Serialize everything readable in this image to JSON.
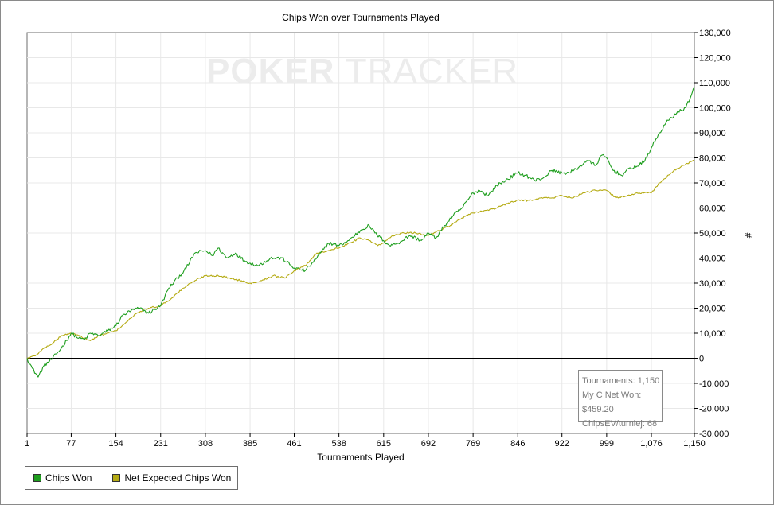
{
  "chart_data": {
    "type": "line",
    "title": "Chips Won over Tournaments Played",
    "xlabel": "Tournaments Played",
    "ylabel": "#",
    "watermark": {
      "left": "POKER",
      "right": "TRACKER"
    },
    "xlim": [
      1,
      1150
    ],
    "ylim": [
      -30000,
      130000
    ],
    "xticks": [
      1,
      77,
      154,
      231,
      308,
      385,
      461,
      538,
      615,
      692,
      769,
      846,
      922,
      999,
      1076,
      1150
    ],
    "xtick_labels": [
      "1",
      "77",
      "154",
      "231",
      "308",
      "385",
      "461",
      "538",
      "615",
      "692",
      "769",
      "846",
      "922",
      "999",
      "1,076",
      "1,150"
    ],
    "yticks": [
      -30000,
      -20000,
      -10000,
      0,
      10000,
      20000,
      30000,
      40000,
      50000,
      60000,
      70000,
      80000,
      90000,
      100000,
      110000,
      120000,
      130000
    ],
    "ytick_labels": [
      "-30,000",
      "-20,000",
      "-10,000",
      "0",
      "10,000",
      "20,000",
      "30,000",
      "40,000",
      "50,000",
      "60,000",
      "70,000",
      "80,000",
      "90,000",
      "100,000",
      "110,000",
      "120,000",
      "130,000"
    ],
    "grid": true,
    "y_axis_side": "right",
    "legend_position": "bottom-left",
    "series": [
      {
        "name": "Chips Won",
        "color": "#1e9e1e",
        "x": [
          1,
          10,
          20,
          30,
          45,
          60,
          77,
          90,
          100,
          110,
          125,
          140,
          154,
          165,
          180,
          195,
          210,
          231,
          245,
          260,
          275,
          290,
          308,
          320,
          330,
          345,
          360,
          375,
          385,
          400,
          420,
          440,
          461,
          480,
          500,
          520,
          538,
          555,
          575,
          590,
          600,
          615,
          625,
          640,
          660,
          680,
          692,
          705,
          720,
          735,
          750,
          769,
          780,
          795,
          810,
          825,
          846,
          860,
          875,
          890,
          905,
          922,
          935,
          950,
          965,
          980,
          990,
          999,
          1010,
          1025,
          1040,
          1055,
          1065,
          1076,
          1090,
          1105,
          1120,
          1135,
          1150
        ],
        "y": [
          0,
          -4000,
          -7500,
          -3000,
          0,
          4000,
          10000,
          8000,
          7500,
          10000,
          9000,
          11000,
          13000,
          17000,
          19000,
          20000,
          18000,
          21000,
          28000,
          32000,
          36000,
          42000,
          43000,
          41000,
          44000,
          40000,
          42000,
          39000,
          38000,
          37000,
          40000,
          40000,
          36000,
          35000,
          40000,
          46000,
          45000,
          47000,
          51000,
          53000,
          50000,
          47000,
          45000,
          46000,
          49000,
          47000,
          50000,
          48000,
          53000,
          57000,
          60000,
          66000,
          67000,
          65000,
          69000,
          71000,
          74000,
          73000,
          71000,
          72000,
          75000,
          74000,
          74000,
          76000,
          79000,
          77000,
          81000,
          80000,
          75000,
          73000,
          76000,
          77000,
          79000,
          84000,
          90000,
          95000,
          98000,
          100000,
          108000
        ]
      },
      {
        "name": "Net Expected Chips Won",
        "color": "#b5ab14",
        "x": [
          1,
          15,
          30,
          45,
          60,
          77,
          90,
          110,
          125,
          140,
          154,
          170,
          190,
          210,
          231,
          250,
          270,
          290,
          308,
          330,
          350,
          370,
          385,
          405,
          425,
          445,
          461,
          480,
          500,
          520,
          538,
          555,
          575,
          590,
          605,
          615,
          630,
          650,
          670,
          692,
          710,
          730,
          750,
          769,
          790,
          810,
          830,
          846,
          865,
          885,
          905,
          922,
          940,
          960,
          980,
          999,
          1015,
          1035,
          1055,
          1076,
          1090,
          1110,
          1130,
          1150
        ],
        "y": [
          0,
          1000,
          4000,
          6000,
          9000,
          10000,
          9000,
          7000,
          9000,
          10000,
          11000,
          14000,
          18000,
          20000,
          21000,
          24000,
          28000,
          31000,
          33000,
          33000,
          32000,
          31000,
          30000,
          31000,
          33000,
          32000,
          35000,
          37000,
          42000,
          43000,
          44000,
          46000,
          48000,
          47000,
          45000,
          46000,
          49000,
          50000,
          50000,
          49000,
          51000,
          53000,
          56000,
          58000,
          59000,
          60000,
          62000,
          63000,
          63000,
          64000,
          64000,
          65000,
          64000,
          66000,
          67000,
          67000,
          64000,
          65000,
          66000,
          66000,
          70000,
          74000,
          77000,
          79000
        ]
      }
    ]
  },
  "stats_box": {
    "line1": "Tournaments: 1,150",
    "line2": "My C Net Won: $459.20",
    "line3": "ChipsEV/turniej: 68"
  }
}
